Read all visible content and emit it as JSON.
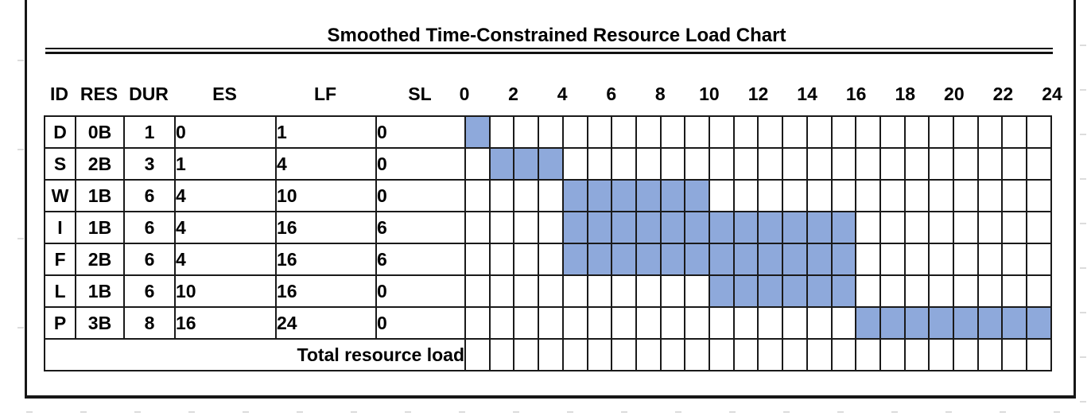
{
  "title": "Smoothed Time-Constrained Resource Load Chart",
  "colors": {
    "bar_fill": "#8EA9DB",
    "grid_line": "#1A1A1A",
    "frame_border": "#161616",
    "background": "#FFFFFF",
    "worksheet_tick": "#DCDCDC"
  },
  "chart_data": {
    "type": "bar",
    "subtype": "gantt-resource-load-table",
    "title": "Smoothed Time-Constrained Resource Load Chart",
    "grid": true,
    "legend": null,
    "bar_color": "#8EA9DB",
    "columns": [
      "ID",
      "RES",
      "DUR",
      "ES",
      "LF",
      "SL"
    ],
    "time_axis": {
      "min": 0,
      "max": 24,
      "tick_step": 2,
      "tick_labels": [
        "0",
        "2",
        "4",
        "6",
        "8",
        "10",
        "12",
        "14",
        "16",
        "18",
        "20",
        "22",
        "24"
      ]
    },
    "tasks": [
      {
        "ID": "D",
        "RES": "0B",
        "DUR": "1",
        "ES": "0",
        "LF": "1",
        "SL": "0",
        "bar_start": 0,
        "bar_end": 1
      },
      {
        "ID": "S",
        "RES": "2B",
        "DUR": "3",
        "ES": "1",
        "LF": "4",
        "SL": "0",
        "bar_start": 1,
        "bar_end": 4
      },
      {
        "ID": "W",
        "RES": "1B",
        "DUR": "6",
        "ES": "4",
        "LF": "10",
        "SL": "0",
        "bar_start": 4,
        "bar_end": 10
      },
      {
        "ID": "I",
        "RES": "1B",
        "DUR": "6",
        "ES": "4",
        "LF": "16",
        "SL": "6",
        "bar_start": 4,
        "bar_end": 16
      },
      {
        "ID": "F",
        "RES": "2B",
        "DUR": "6",
        "ES": "4",
        "LF": "16",
        "SL": "6",
        "bar_start": 4,
        "bar_end": 16
      },
      {
        "ID": "L",
        "RES": "1B",
        "DUR": "6",
        "ES": "10",
        "LF": "16",
        "SL": "0",
        "bar_start": 10,
        "bar_end": 16
      },
      {
        "ID": "P",
        "RES": "3B",
        "DUR": "8",
        "ES": "16",
        "LF": "24",
        "SL": "0",
        "bar_start": 16,
        "bar_end": 24
      }
    ],
    "footer": {
      "label": "Total resource load",
      "values": []
    }
  }
}
